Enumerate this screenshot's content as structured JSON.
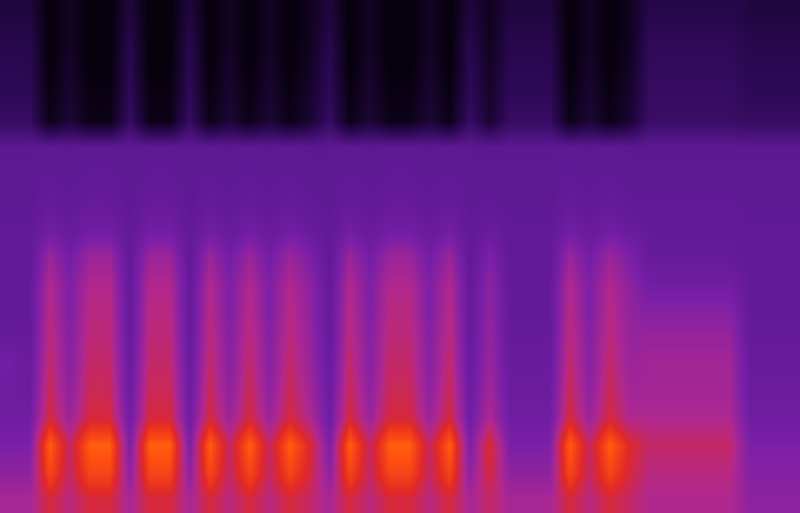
{
  "chart_data": {
    "type": "heatmap",
    "tick_labels": false,
    "zlim": [
      0,
      100
    ],
    "cells": [
      [
        10,
        10,
        2,
        6,
        2,
        2,
        10,
        2,
        2,
        10,
        2,
        6,
        2,
        6,
        2,
        5,
        10,
        2,
        6,
        2,
        2,
        6,
        2,
        10,
        5,
        10,
        10,
        10,
        2,
        6,
        2,
        5,
        12,
        12,
        12,
        12,
        12,
        10,
        10,
        10
      ],
      [
        12,
        12,
        2,
        6,
        2,
        2,
        12,
        2,
        2,
        12,
        2,
        6,
        2,
        6,
        2,
        5,
        12,
        2,
        6,
        2,
        2,
        6,
        2,
        12,
        5,
        12,
        12,
        12,
        2,
        6,
        2,
        5,
        14,
        14,
        14,
        14,
        14,
        12,
        12,
        12
      ],
      [
        13,
        13,
        2,
        7,
        2,
        2,
        13,
        2,
        2,
        13,
        2,
        7,
        2,
        7,
        2,
        6,
        13,
        2,
        7,
        2,
        2,
        7,
        2,
        13,
        6,
        13,
        13,
        13,
        2,
        7,
        2,
        6,
        15,
        15,
        15,
        15,
        15,
        13,
        13,
        13
      ],
      [
        14,
        14,
        3,
        8,
        3,
        3,
        14,
        3,
        3,
        14,
        3,
        8,
        3,
        8,
        3,
        7,
        14,
        3,
        8,
        3,
        3,
        8,
        3,
        14,
        7,
        14,
        14,
        14,
        3,
        8,
        3,
        7,
        16,
        16,
        16,
        16,
        16,
        14,
        14,
        14
      ],
      [
        16,
        16,
        4,
        9,
        4,
        4,
        16,
        4,
        4,
        16,
        4,
        9,
        4,
        9,
        4,
        8,
        16,
        4,
        9,
        4,
        4,
        9,
        4,
        16,
        8,
        16,
        16,
        16,
        4,
        9,
        4,
        8,
        17,
        17,
        17,
        17,
        17,
        16,
        16,
        16
      ],
      [
        26,
        26,
        27,
        26,
        27,
        27,
        26,
        27,
        27,
        26,
        27,
        26,
        27,
        26,
        27,
        26,
        26,
        27,
        26,
        27,
        27,
        26,
        27,
        26,
        26,
        26,
        26,
        26,
        27,
        26,
        27,
        26,
        26,
        26,
        26,
        26,
        26,
        26,
        26,
        26
      ],
      [
        27,
        27,
        28,
        27,
        28,
        28,
        27,
        28,
        28,
        27,
        28,
        27,
        28,
        27,
        28,
        27,
        27,
        28,
        27,
        28,
        28,
        27,
        28,
        27,
        27,
        27,
        27,
        27,
        28,
        27,
        28,
        27,
        27,
        27,
        27,
        27,
        27,
        27,
        27,
        27
      ],
      [
        27,
        27,
        30,
        28,
        30,
        30,
        27,
        30,
        30,
        27,
        30,
        28,
        30,
        28,
        30,
        28,
        27,
        30,
        28,
        30,
        30,
        28,
        30,
        27,
        28,
        27,
        27,
        27,
        30,
        28,
        30,
        28,
        28,
        28,
        28,
        28,
        28,
        27,
        27,
        27
      ],
      [
        28,
        28,
        34,
        30,
        34,
        34,
        28,
        34,
        34,
        28,
        34,
        30,
        34,
        30,
        34,
        31,
        28,
        34,
        30,
        34,
        34,
        30,
        34,
        28,
        31,
        28,
        28,
        28,
        34,
        30,
        34,
        31,
        29,
        29,
        29,
        29,
        29,
        28,
        28,
        28
      ],
      [
        28,
        28,
        45,
        35,
        45,
        45,
        28,
        45,
        45,
        28,
        45,
        35,
        45,
        35,
        45,
        38,
        28,
        45,
        35,
        45,
        45,
        35,
        45,
        28,
        38,
        28,
        28,
        28,
        45,
        35,
        45,
        38,
        30,
        30,
        30,
        30,
        30,
        28,
        28,
        28
      ],
      [
        29,
        29,
        50,
        38,
        50,
        50,
        29,
        50,
        50,
        29,
        50,
        38,
        50,
        38,
        50,
        42,
        29,
        50,
        38,
        50,
        50,
        38,
        50,
        29,
        42,
        29,
        29,
        29,
        50,
        38,
        50,
        42,
        34,
        34,
        34,
        34,
        34,
        29,
        29,
        29
      ],
      [
        29,
        29,
        52,
        38,
        52,
        52,
        29,
        52,
        52,
        29,
        52,
        38,
        52,
        38,
        52,
        43,
        29,
        52,
        38,
        52,
        52,
        38,
        52,
        29,
        43,
        29,
        29,
        29,
        52,
        38,
        52,
        43,
        40,
        40,
        40,
        40,
        40,
        29,
        29,
        29
      ],
      [
        30,
        30,
        53,
        40,
        53,
        53,
        30,
        53,
        53,
        30,
        53,
        40,
        53,
        40,
        53,
        44,
        30,
        53,
        40,
        53,
        53,
        40,
        53,
        30,
        44,
        30,
        30,
        30,
        53,
        40,
        53,
        44,
        44,
        44,
        44,
        44,
        44,
        30,
        30,
        30
      ],
      [
        35,
        31,
        55,
        40,
        55,
        55,
        31,
        55,
        55,
        31,
        55,
        40,
        55,
        40,
        55,
        45,
        31,
        55,
        40,
        55,
        55,
        40,
        55,
        31,
        45,
        31,
        31,
        31,
        55,
        40,
        55,
        45,
        47,
        47,
        47,
        47,
        47,
        31,
        31,
        31
      ],
      [
        33,
        32,
        57,
        42,
        57,
        57,
        32,
        57,
        57,
        32,
        57,
        42,
        57,
        42,
        57,
        47,
        32,
        57,
        42,
        57,
        57,
        42,
        57,
        32,
        47,
        32,
        32,
        32,
        57,
        42,
        57,
        47,
        47,
        47,
        47,
        47,
        47,
        32,
        32,
        32
      ],
      [
        34,
        34,
        60,
        45,
        60,
        60,
        34,
        60,
        60,
        34,
        60,
        45,
        60,
        45,
        60,
        50,
        34,
        60,
        45,
        60,
        60,
        45,
        60,
        34,
        50,
        34,
        34,
        34,
        60,
        45,
        60,
        50,
        50,
        50,
        50,
        50,
        50,
        34,
        34,
        34
      ],
      [
        38,
        38,
        78,
        55,
        78,
        78,
        38,
        78,
        78,
        38,
        78,
        55,
        78,
        55,
        78,
        62,
        38,
        78,
        55,
        78,
        78,
        55,
        78,
        38,
        62,
        38,
        38,
        38,
        78,
        55,
        78,
        62,
        55,
        55,
        55,
        55,
        55,
        38,
        38,
        38
      ],
      [
        42,
        42,
        72,
        55,
        72,
        72,
        42,
        72,
        72,
        42,
        72,
        55,
        72,
        55,
        72,
        60,
        42,
        72,
        55,
        72,
        72,
        55,
        72,
        42,
        60,
        42,
        42,
        42,
        72,
        55,
        72,
        60,
        52,
        52,
        52,
        52,
        52,
        40,
        40,
        40
      ],
      [
        48,
        48,
        60,
        52,
        60,
        60,
        48,
        60,
        60,
        48,
        60,
        52,
        60,
        52,
        60,
        55,
        48,
        60,
        52,
        60,
        60,
        52,
        60,
        48,
        55,
        48,
        48,
        48,
        60,
        52,
        60,
        55,
        50,
        50,
        50,
        50,
        50,
        42,
        42,
        42
      ]
    ]
  }
}
